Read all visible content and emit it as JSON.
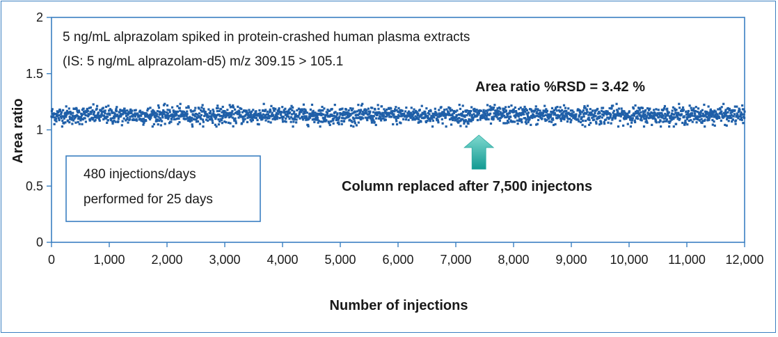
{
  "chart_data": {
    "type": "scatter",
    "title": "",
    "xlabel": "Number of injections",
    "ylabel": "Area ratio",
    "xlim": [
      0,
      12000
    ],
    "ylim": [
      0,
      2
    ],
    "x_ticks": [
      0,
      1000,
      2000,
      3000,
      4000,
      5000,
      6000,
      7000,
      8000,
      9000,
      10000,
      11000,
      12000
    ],
    "x_tick_labels": [
      "0",
      "1,000",
      "2,000",
      "3,000",
      "4,000",
      "5,000",
      "6,000",
      "7,000",
      "8,000",
      "9,000",
      "10,000",
      "11,000",
      "12,000"
    ],
    "y_ticks": [
      0,
      0.5,
      1,
      1.5,
      2
    ],
    "y_tick_labels": [
      "0",
      "0.5",
      "1",
      "1.5",
      "2"
    ],
    "grid": false,
    "series": [
      {
        "color": "#1f5fa8",
        "x_range": [
          0,
          12000
        ],
        "mean": 1.13,
        "rsd_percent": 3.42
      }
    ],
    "annotations": {
      "sample_line1": "5 ng/mL alprazolam spiked in protein-crashed human plasma extracts",
      "sample_line2": "(IS: 5 ng/mL alprazolam-d5) m/z 309.15 > 105.1",
      "rsd": "Area ratio %RSD = 3.42 %",
      "box_line1": "480 injections/days",
      "box_line2": "performed for 25 days",
      "column_note": "Column replaced after 7,500 injectons"
    },
    "arrow": {
      "x": 7400,
      "color": "#1aa7a0"
    },
    "colors": {
      "frame": "#3a7fc1",
      "plot_border": "#3a7fc1",
      "box_border": "#3a7fc1",
      "points": "#1f5fa8",
      "arrow": "#1aa7a0"
    }
  }
}
